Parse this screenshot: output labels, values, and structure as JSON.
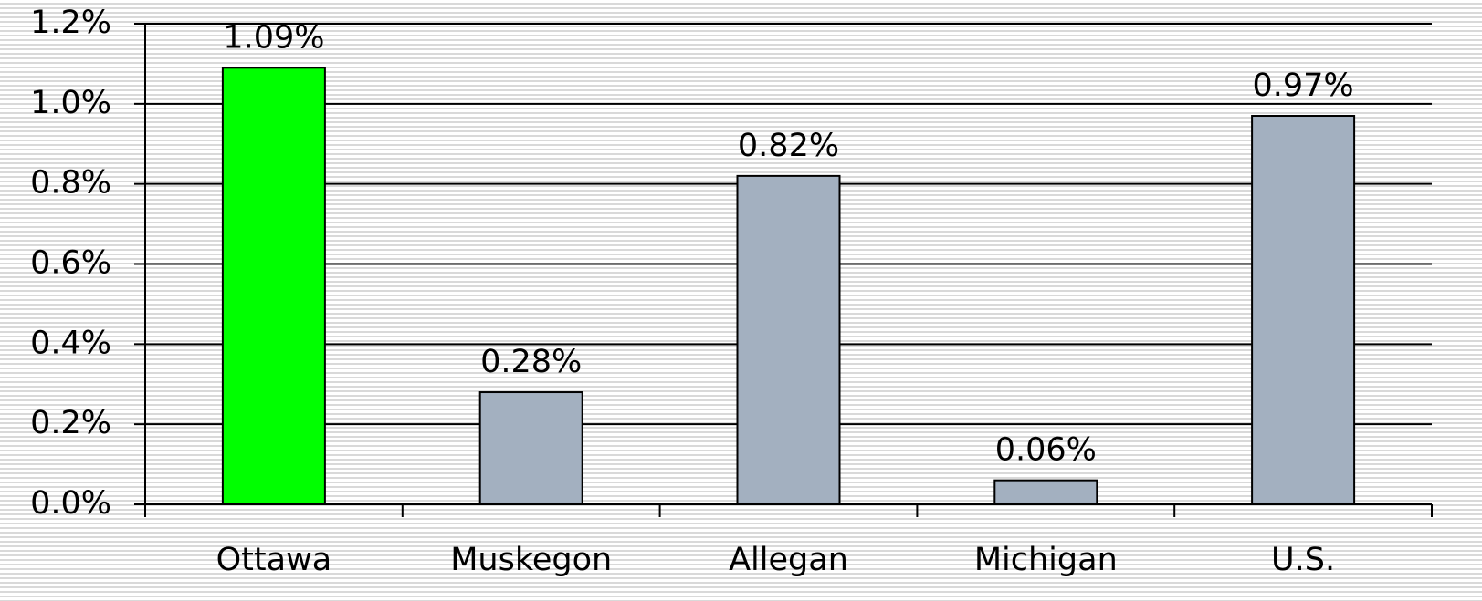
{
  "chart_data": {
    "type": "bar",
    "categories": [
      "Ottawa",
      "Muskegon",
      "Allegan",
      "Michigan",
      "U.S."
    ],
    "values": [
      1.09,
      0.28,
      0.82,
      0.06,
      0.97
    ],
    "value_labels": [
      "1.09%",
      "0.28%",
      "0.82%",
      "0.06%",
      "0.97%"
    ],
    "colors": [
      "#00ff00",
      "#a3b0c0",
      "#a3b0c0",
      "#a3b0c0",
      "#a3b0c0"
    ],
    "ylim": [
      0,
      1.2
    ],
    "yticks": [
      {
        "value": 0,
        "label": "0.0%"
      },
      {
        "value": 0.2,
        "label": "0.2%"
      },
      {
        "value": 0.4,
        "label": "0.4%"
      },
      {
        "value": 0.6,
        "label": "0.6%"
      },
      {
        "value": 0.8,
        "label": "0.8%"
      },
      {
        "value": 1.0,
        "label": "1.0%"
      },
      {
        "value": 1.2,
        "label": "1.2%"
      }
    ],
    "grid": true
  }
}
